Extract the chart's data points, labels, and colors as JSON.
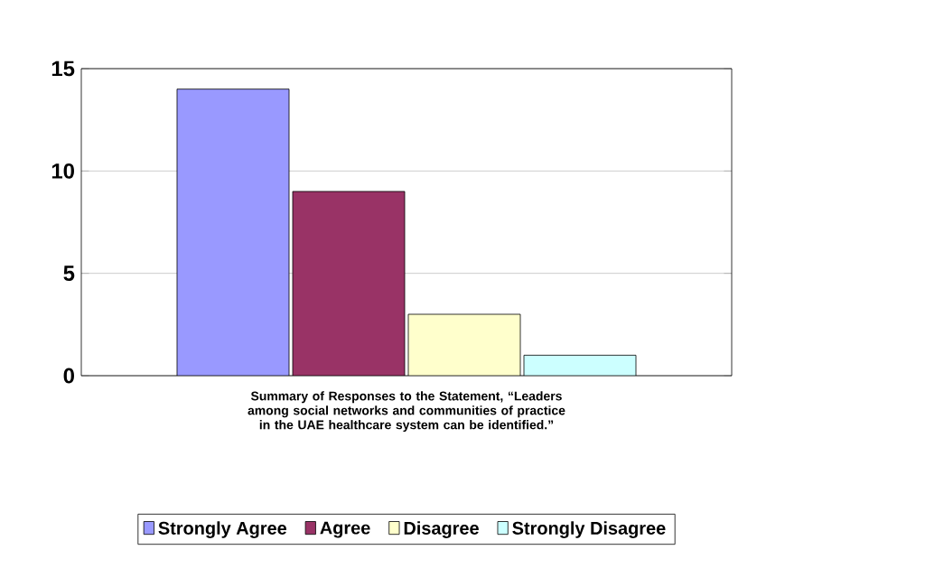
{
  "chart_data": {
    "type": "bar",
    "xlabel": "Summary of Responses to the Statement, “Leaders among social networks and communities of practice in the UAE healthcare system can be identified.”",
    "categories": [
      null
    ],
    "series": [
      {
        "name": "Strongly Agree",
        "color": "#9999ff",
        "values": [
          14
        ]
      },
      {
        "name": "Agree",
        "color": "#993366",
        "values": [
          9
        ]
      },
      {
        "name": "Disagree",
        "color": "#ffffcc",
        "values": [
          3
        ]
      },
      {
        "name": "Strongly Disagree",
        "color": "#ccffff",
        "values": [
          1
        ]
      }
    ],
    "ylim": [
      0,
      15
    ],
    "yticks": [
      0,
      5,
      10,
      15
    ],
    "grid": "y",
    "legend": "bottom"
  }
}
